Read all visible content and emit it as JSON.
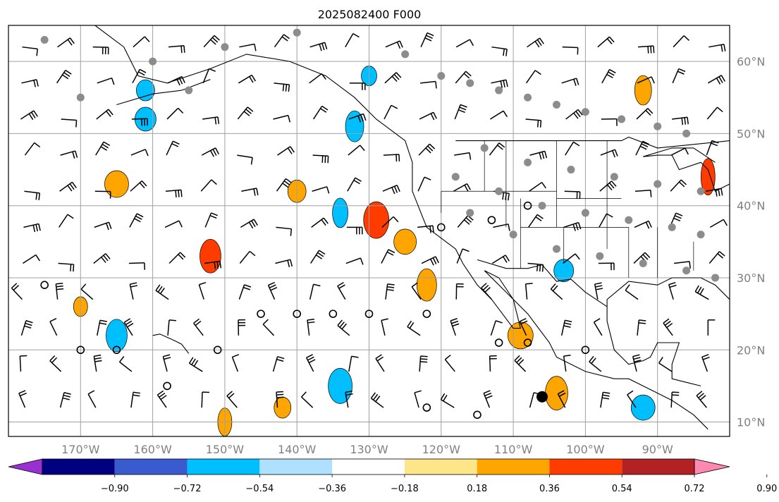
{
  "title": "2025082400 F000",
  "map": {
    "lon_range": [
      -180,
      -80
    ],
    "lat_range": [
      8,
      65
    ],
    "lon_labels": [
      {
        "lon": -170,
        "text": "170°W"
      },
      {
        "lon": -160,
        "text": "160°W"
      },
      {
        "lon": -150,
        "text": "150°W"
      },
      {
        "lon": -140,
        "text": "140°W"
      },
      {
        "lon": -130,
        "text": "130°W"
      },
      {
        "lon": -120,
        "text": "120°W"
      },
      {
        "lon": -110,
        "text": "110°W"
      },
      {
        "lon": -100,
        "text": "100°W"
      },
      {
        "lon": -90,
        "text": "90°W"
      }
    ],
    "lat_labels": [
      {
        "lat": 60,
        "text": "60°N"
      },
      {
        "lat": 50,
        "text": "50°N"
      },
      {
        "lat": 40,
        "text": "40°N"
      },
      {
        "lat": 30,
        "text": "30°N"
      },
      {
        "lat": 20,
        "text": "20°N"
      },
      {
        "lat": 10,
        "text": "10°N"
      }
    ],
    "storm_marker": {
      "lon": -106,
      "lat": 13.5
    }
  },
  "colorbar": {
    "levels": [
      "−0.90",
      "−0.72",
      "−0.54",
      "−0.36",
      "−0.18",
      "0.18",
      "0.36",
      "0.54",
      "0.72",
      "0.90"
    ],
    "colors": [
      "#9b30d0",
      "#000080",
      "#3a5ad0",
      "#00bfff",
      "#b0e0ff",
      "#ffffff",
      "#fde68a",
      "#ffa500",
      "#ff3c00",
      "#b22222",
      "#ff88b0"
    ]
  },
  "chart_data": {
    "type": "map",
    "title": "2025082400 F000",
    "colorbar_levels": [
      -0.9,
      -0.72,
      -0.54,
      -0.36,
      -0.18,
      0.18,
      0.36,
      0.54,
      0.72,
      0.9
    ],
    "colorbar_colors": [
      "#9b30d0",
      "#000080",
      "#3a5ad0",
      "#00bfff",
      "#b0e0ff",
      "#ffffff",
      "#fde68a",
      "#ffa500",
      "#ff3c00",
      "#b22222",
      "#ff88b0"
    ],
    "lon_ticks": [
      -170,
      -160,
      -150,
      -140,
      -130,
      -120,
      -110,
      -100,
      -90
    ],
    "lat_ticks": [
      10,
      20,
      30,
      40,
      50,
      60
    ],
    "grid": true,
    "contours": [
      {
        "lon": -170,
        "lat": 26,
        "value": 0.4
      },
      {
        "lon": -165,
        "lat": 43,
        "value": 0.45
      },
      {
        "lon": -152,
        "lat": 33,
        "value": 0.6
      },
      {
        "lon": -140,
        "lat": 42,
        "value": 0.4
      },
      {
        "lon": -134,
        "lat": 39,
        "value": -0.5
      },
      {
        "lon": -129,
        "lat": 38,
        "value": 0.6
      },
      {
        "lon": -125,
        "lat": 35,
        "value": 0.4
      },
      {
        "lon": -122,
        "lat": 29,
        "value": 0.5
      },
      {
        "lon": -142,
        "lat": 12,
        "value": 0.5
      },
      {
        "lon": -150,
        "lat": 10,
        "value": 0.5
      },
      {
        "lon": -134,
        "lat": 15,
        "value": -0.5
      },
      {
        "lon": -161,
        "lat": 52,
        "value": -0.4
      },
      {
        "lon": -132,
        "lat": 51,
        "value": -0.4
      },
      {
        "lon": -130,
        "lat": 58,
        "value": -0.4
      },
      {
        "lon": -109,
        "lat": 22,
        "value": 0.5
      },
      {
        "lon": -104,
        "lat": 14,
        "value": 0.4
      },
      {
        "lon": -103,
        "lat": 31,
        "value": -0.5
      },
      {
        "lon": -92,
        "lat": 56,
        "value": 0.4
      },
      {
        "lon": -83,
        "lat": 44,
        "value": 0.6
      },
      {
        "lon": -92,
        "lat": 12,
        "value": -0.5
      },
      {
        "lon": -165,
        "lat": 22,
        "value": -0.4
      },
      {
        "lon": -161,
        "lat": 56,
        "value": -0.4
      }
    ]
  }
}
